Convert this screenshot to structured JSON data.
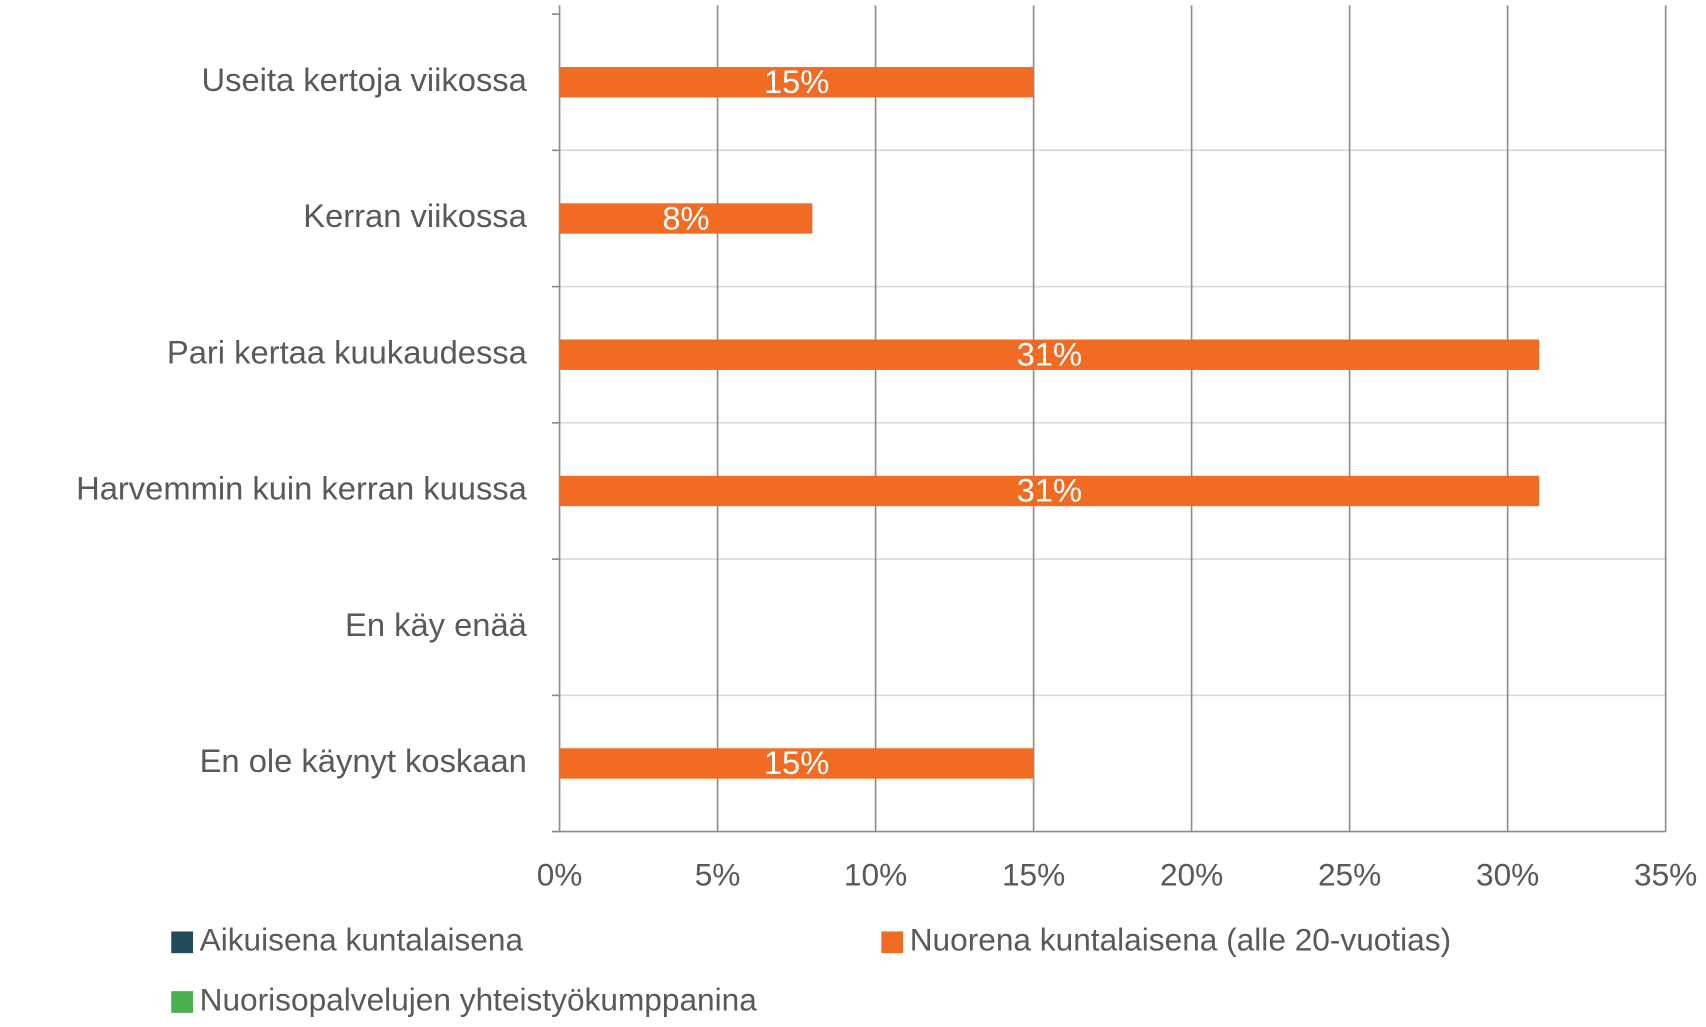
{
  "chart_data": {
    "type": "bar",
    "orientation": "horizontal",
    "categories": [
      "Useita kertoja viikossa",
      "Kerran viikossa",
      "Pari kertaa kuukaudessa",
      "Harvemmin kuin kerran kuussa",
      "En käy enää",
      "En ole käynyt koskaan"
    ],
    "series": [
      {
        "name": "Aikuisena kuntalaisena",
        "color": "#234b5c",
        "values": [
          null,
          null,
          null,
          null,
          null,
          null
        ]
      },
      {
        "name": "Nuorena kuntalaisena (alle 20-vuotias)",
        "color": "#f26b22",
        "values": [
          15,
          8,
          31,
          31,
          null,
          15
        ],
        "value_labels": [
          "15%",
          "8%",
          "31%",
          "31%",
          null,
          "15%"
        ]
      },
      {
        "name": "Nuorisopalvelujen yhteistyökumppanina",
        "color": "#4caf50",
        "values": [
          null,
          null,
          null,
          null,
          null,
          null
        ]
      }
    ],
    "xlim": [
      0,
      35
    ],
    "xticks": [
      {
        "value": 0,
        "label": "0%"
      },
      {
        "value": 5,
        "label": "5%"
      },
      {
        "value": 10,
        "label": "10%"
      },
      {
        "value": 15,
        "label": "15%"
      },
      {
        "value": 20,
        "label": "20%"
      },
      {
        "value": 25,
        "label": "25%"
      },
      {
        "value": 30,
        "label": "30%"
      },
      {
        "value": 35,
        "label": "35%"
      }
    ],
    "grid": true,
    "legend": "bottom"
  }
}
